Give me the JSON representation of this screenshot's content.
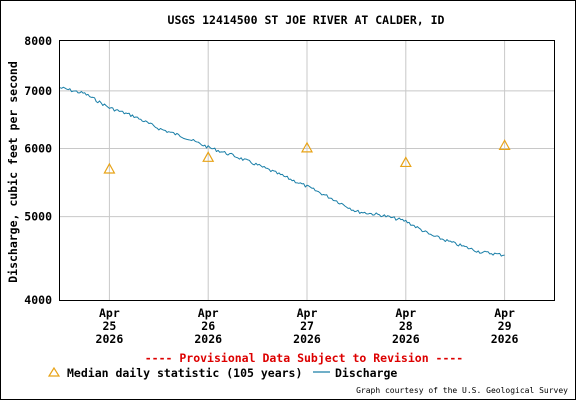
{
  "chart_data": {
    "type": "line",
    "title": "USGS 12414500 ST JOE RIVER AT CALDER, ID",
    "ylabel": "Discharge, cubic feet per second",
    "xlabel": "",
    "yscale": "log",
    "ylim": [
      4000,
      8000
    ],
    "yticks": [
      {
        "value": 4000,
        "label": "4000"
      },
      {
        "value": 5000,
        "label": "5000"
      },
      {
        "value": 6000,
        "label": "6000"
      },
      {
        "value": 7000,
        "label": "7000"
      },
      {
        "value": 8000,
        "label": "8000"
      }
    ],
    "xlim": [
      "2026-04-24 12:00",
      "2026-04-29 12:00"
    ],
    "xticks": [
      {
        "value": "2026-04-25",
        "month": "Apr",
        "day": "25",
        "year": "2026"
      },
      {
        "value": "2026-04-26",
        "month": "Apr",
        "day": "26",
        "year": "2026"
      },
      {
        "value": "2026-04-27",
        "month": "Apr",
        "day": "27",
        "year": "2026"
      },
      {
        "value": "2026-04-28",
        "month": "Apr",
        "day": "28",
        "year": "2026"
      },
      {
        "value": "2026-04-29",
        "month": "Apr",
        "day": "29",
        "year": "2026"
      }
    ],
    "grid": true,
    "legend_position": "bottom",
    "series": [
      {
        "name": "Median daily statistic (105 years)",
        "marker": "triangle",
        "color": "#e8a317",
        "points": [
          {
            "x": "2026-04-25",
            "y": 5680
          },
          {
            "x": "2026-04-26",
            "y": 5860
          },
          {
            "x": "2026-04-27",
            "y": 6010
          },
          {
            "x": "2026-04-28",
            "y": 5780
          },
          {
            "x": "2026-04-29",
            "y": 6050
          }
        ]
      },
      {
        "name": "Discharge",
        "color": "#1a7fa8",
        "points": [
          {
            "x": "2026-04-24 12:00",
            "y": 7060
          },
          {
            "x": "2026-04-24 18:00",
            "y": 6950
          },
          {
            "x": "2026-04-25 00:00",
            "y": 6690
          },
          {
            "x": "2026-04-25 06:00",
            "y": 6540
          },
          {
            "x": "2026-04-25 12:00",
            "y": 6330
          },
          {
            "x": "2026-04-25 18:00",
            "y": 6190
          },
          {
            "x": "2026-04-26 00:00",
            "y": 6020
          },
          {
            "x": "2026-04-26 06:00",
            "y": 5890
          },
          {
            "x": "2026-04-26 12:00",
            "y": 5740
          },
          {
            "x": "2026-04-26 18:00",
            "y": 5580
          },
          {
            "x": "2026-04-27 00:00",
            "y": 5420
          },
          {
            "x": "2026-04-27 06:00",
            "y": 5250
          },
          {
            "x": "2026-04-27 12:00",
            "y": 5070
          },
          {
            "x": "2026-04-27 18:00",
            "y": 5020
          },
          {
            "x": "2026-04-28 00:00",
            "y": 4940
          },
          {
            "x": "2026-04-28 06:00",
            "y": 4760
          },
          {
            "x": "2026-04-28 12:00",
            "y": 4650
          },
          {
            "x": "2026-04-28 18:00",
            "y": 4550
          },
          {
            "x": "2026-04-29 00:00",
            "y": 4510
          }
        ]
      }
    ],
    "annotation": "---- Provisional Data Subject to Revision ----",
    "annotation_color": "#dd0000",
    "credit": "Graph courtesy of the U.S. Geological Survey"
  }
}
